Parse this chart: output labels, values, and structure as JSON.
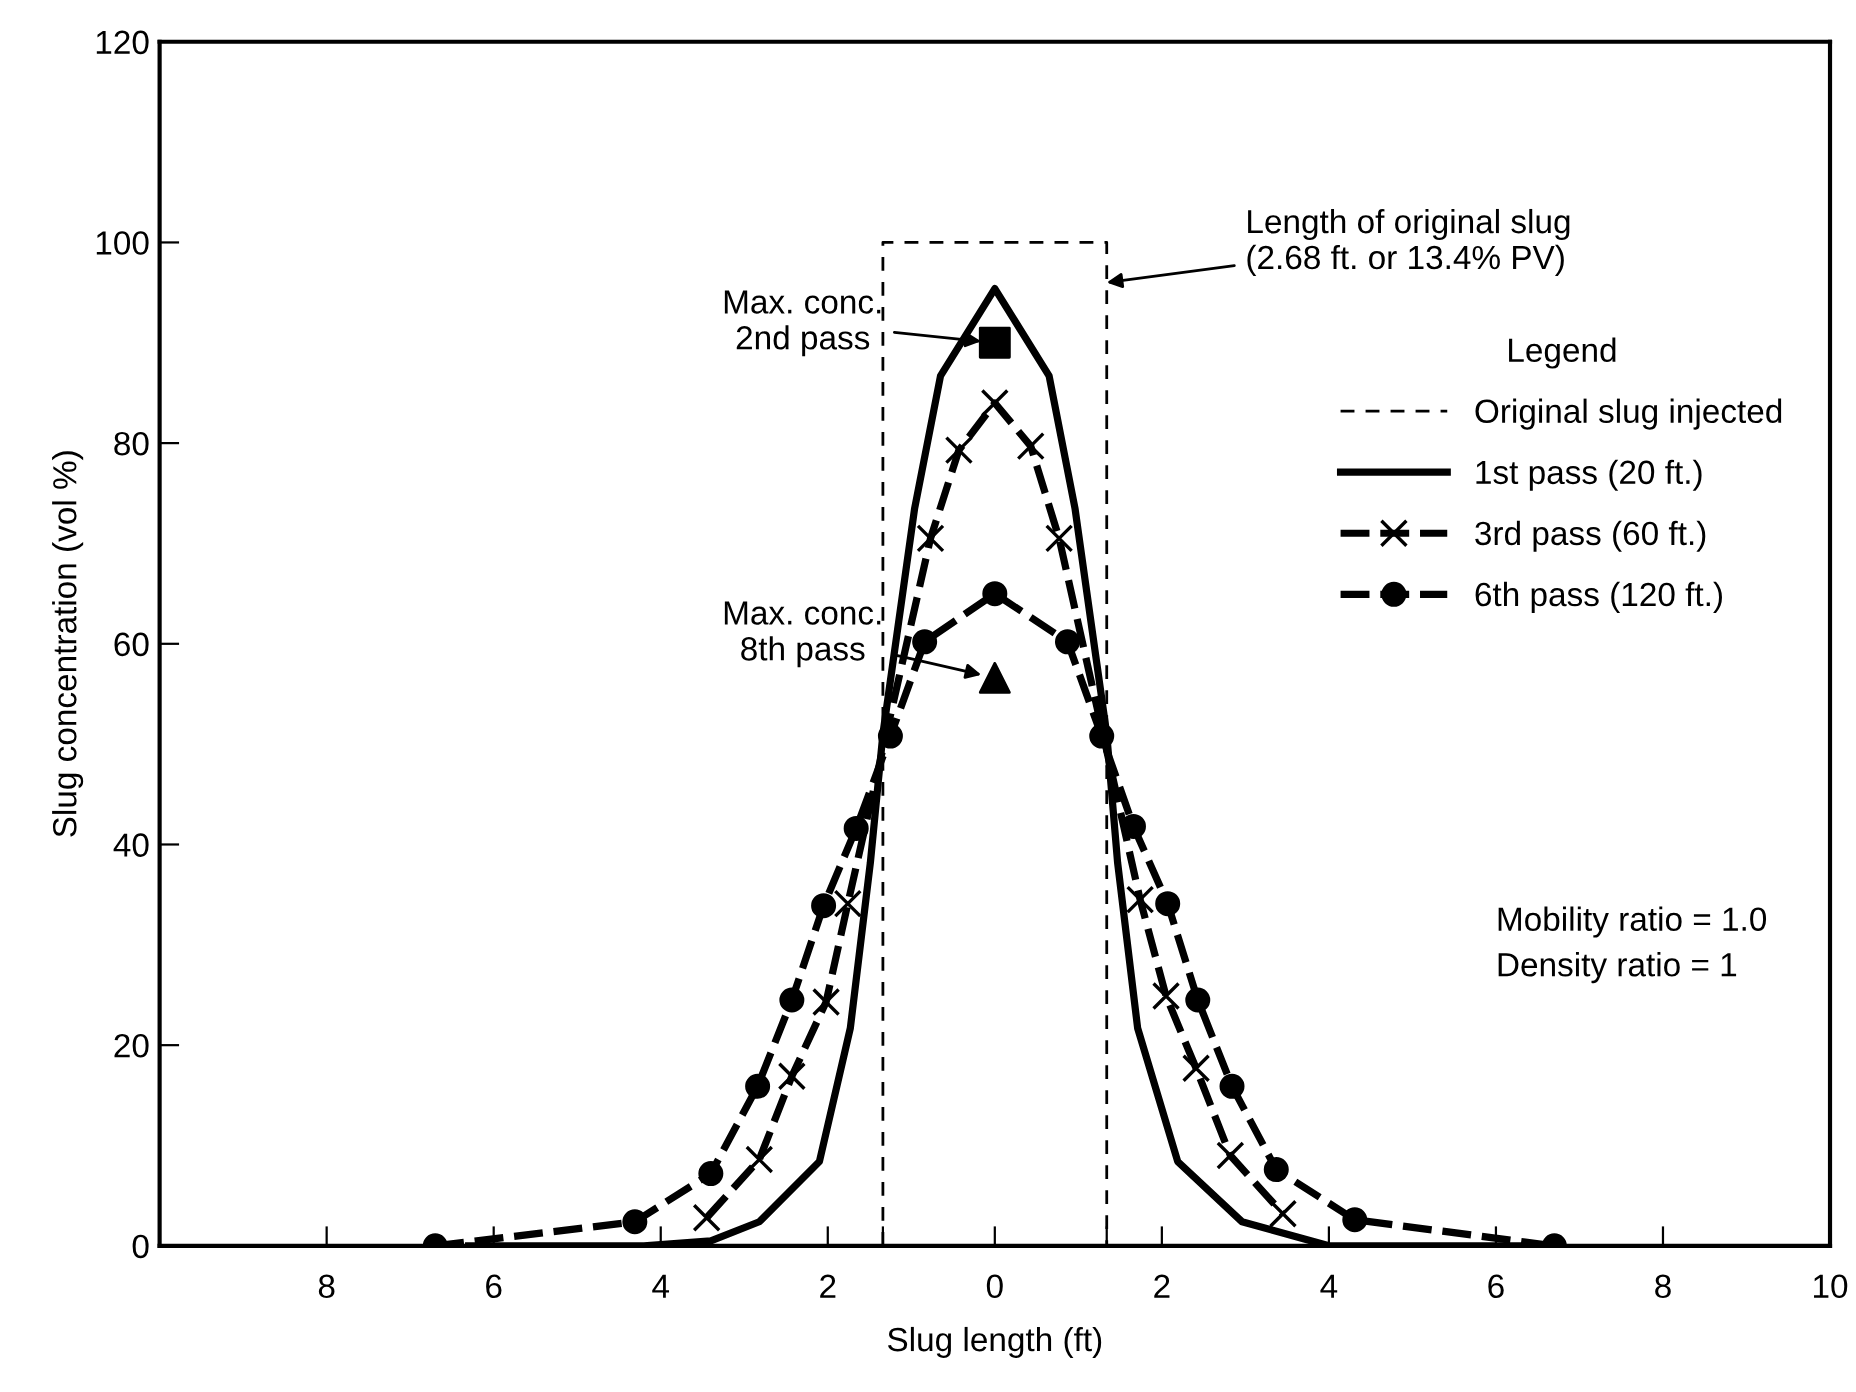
{
  "chart_data": {
    "type": "line",
    "xlabel": "Slug length (ft)",
    "ylabel": "Slug concentration (vol %)",
    "legend_title": "Legend",
    "legend": "right",
    "grid": false,
    "xlim": [
      -10,
      10
    ],
    "ylim": [
      0,
      120
    ],
    "xticks": [
      {
        "value": -8,
        "label": "8"
      },
      {
        "value": -6,
        "label": "6"
      },
      {
        "value": -4,
        "label": "4"
      },
      {
        "value": -2,
        "label": "2"
      },
      {
        "value": -1.34,
        "label": null
      },
      0,
      {
        "value": 1.34,
        "label": null
      },
      2,
      4,
      6,
      8,
      10
    ],
    "yticks": [
      0,
      20,
      40,
      60,
      80,
      100,
      120
    ],
    "series": [
      {
        "name": "Original slug injected",
        "color": "#000000",
        "line_style": "dashed",
        "marker": "none",
        "x": [
          -1.34,
          -1.34,
          1.34,
          1.34
        ],
        "values": [
          0,
          100,
          100,
          0
        ]
      },
      {
        "name": "1st pass (20 ft.)",
        "color": "#000000",
        "line_style": "solid",
        "marker": "none",
        "x": [
          -6.3,
          -4.2,
          -3.4,
          -2.82,
          -2.1,
          -1.73,
          -1.49,
          -1.34,
          -0.96,
          -0.65,
          0,
          0.65,
          0.96,
          1.34,
          1.47,
          1.71,
          2.19,
          2.96,
          4.0,
          6.3
        ],
        "values": [
          0,
          0,
          0.5,
          2.4,
          8.4,
          21.7,
          38.2,
          51,
          73.5,
          86.7,
          95.4,
          86.7,
          73.5,
          51,
          38.2,
          21.7,
          8.4,
          2.4,
          0,
          0
        ]
      },
      {
        "name": "3rd pass (60 ft.)",
        "color": "#000000",
        "line_style": "dashed",
        "marker": "cross",
        "x": [
          -3.45,
          -2.82,
          -2.43,
          -2.02,
          -1.76,
          -0.77,
          -0.43,
          0,
          0.43,
          0.77,
          1.74,
          2.05,
          2.41,
          2.82,
          3.45
        ],
        "values": [
          2.8,
          8.6,
          16.9,
          24.3,
          34.1,
          70.5,
          79.3,
          84,
          79.7,
          70.5,
          34.5,
          24.9,
          17.7,
          9.0,
          3.2
        ]
      },
      {
        "name": "6th pass (120 ft.)",
        "color": "#000000",
        "line_style": "dashed",
        "marker": "circle",
        "x": [
          -6.7,
          -4.31,
          -3.4,
          -2.84,
          -2.43,
          -2.05,
          -1.66,
          -1.25,
          -0.84,
          0,
          0.87,
          1.28,
          1.66,
          2.07,
          2.43,
          2.84,
          3.37,
          4.31,
          6.7
        ],
        "values": [
          0,
          2.4,
          7.2,
          15.9,
          24.5,
          33.9,
          41.6,
          50.8,
          60.2,
          65,
          60.2,
          50.8,
          41.8,
          34.1,
          24.5,
          15.9,
          7.6,
          2.6,
          0
        ]
      },
      {
        "type": "scatter",
        "color": "#000000",
        "marker": "square",
        "x": [
          0
        ],
        "values": [
          90
        ]
      },
      {
        "type": "scatter",
        "color": "#000000",
        "marker": "triangle",
        "x": [
          0
        ],
        "values": [
          56.6
        ]
      }
    ],
    "annotations": [
      "Max. conc.\n2nd pass",
      {
        "text": "Max. conc.\n8th pass",
        "x": 0,
        "y": 56.6
      },
      {
        "text": "Length of original slug\n(2.68 ft. or 13.4% PV)",
        "x": 1.34,
        "y": 96
      },
      "Mobility ratio = 1.0\nDensity ratio = 1"
    ]
  }
}
